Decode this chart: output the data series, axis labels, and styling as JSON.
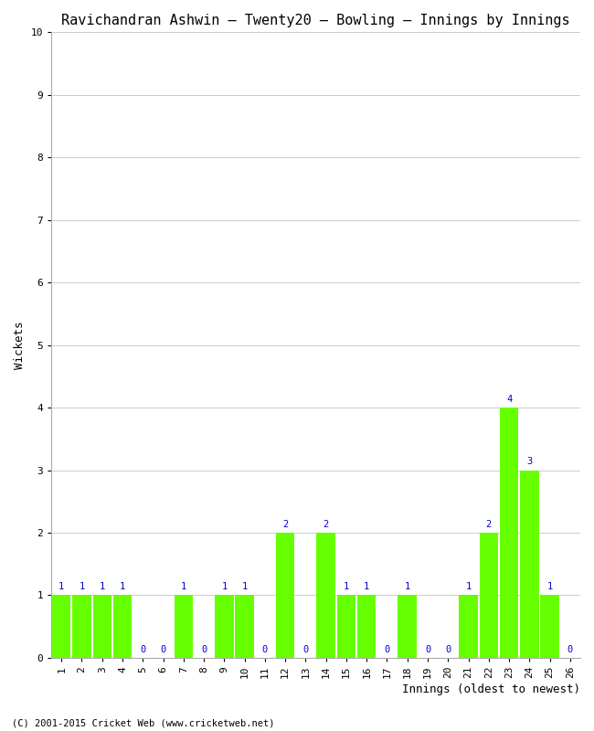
{
  "title": "Ravichandran Ashwin – Twenty20 – Bowling – Innings by Innings",
  "xlabel": "Innings (oldest to newest)",
  "ylabel": "Wickets",
  "footer": "(C) 2001-2015 Cricket Web (www.cricketweb.net)",
  "categories": [
    "1",
    "2",
    "3",
    "4",
    "5",
    "6",
    "7",
    "8",
    "9",
    "10",
    "11",
    "12",
    "13",
    "14",
    "15",
    "16",
    "17",
    "18",
    "19",
    "20",
    "21",
    "22",
    "23",
    "24",
    "25",
    "26"
  ],
  "values": [
    1,
    1,
    1,
    1,
    0,
    0,
    1,
    0,
    1,
    1,
    0,
    2,
    0,
    2,
    1,
    1,
    0,
    1,
    0,
    0,
    1,
    2,
    4,
    3,
    1,
    0
  ],
  "bar_color": "#66ff00",
  "label_color": "#0000cc",
  "background_color": "#ffffff",
  "grid_color": "#cccccc",
  "ylim": [
    0,
    10
  ],
  "yticks": [
    0,
    1,
    2,
    3,
    4,
    5,
    6,
    7,
    8,
    9,
    10
  ],
  "title_fontsize": 11,
  "axis_label_fontsize": 9,
  "tick_fontsize": 8,
  "bar_label_fontsize": 7.5,
  "footer_fontsize": 7.5
}
